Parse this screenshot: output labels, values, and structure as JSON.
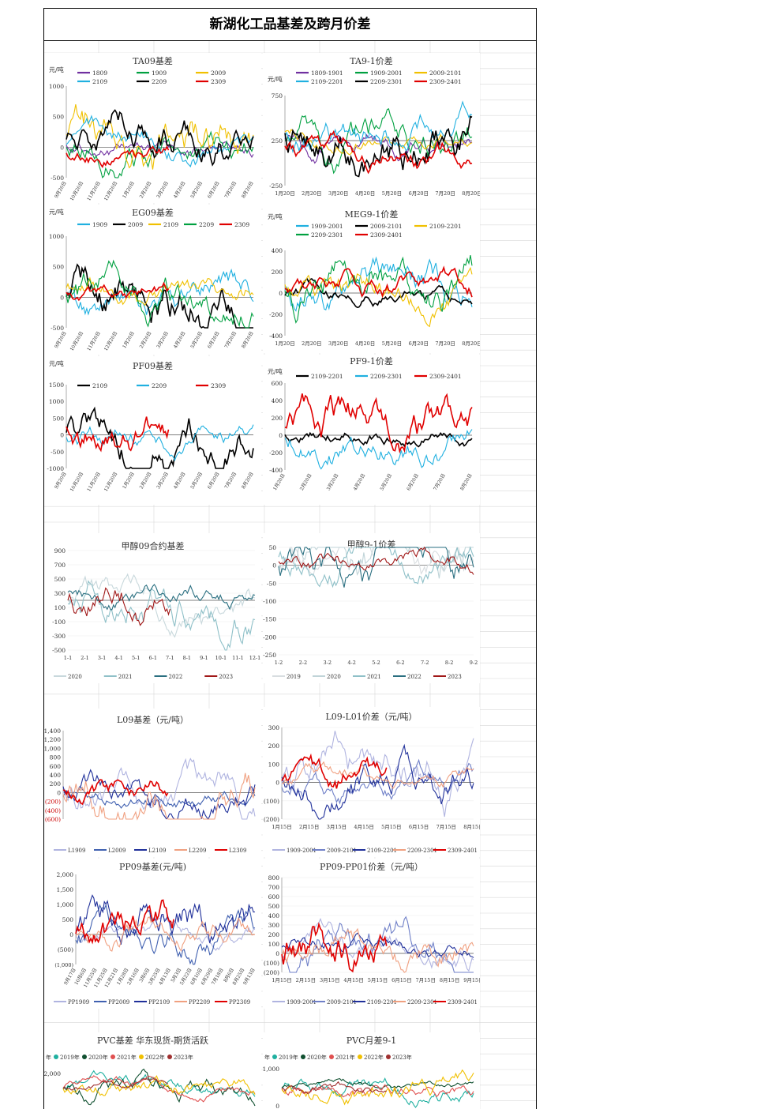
{
  "sheet_title": "新湖化工品基差及跨月价差",
  "chart_data": [
    {
      "id": "ta09",
      "type": "line",
      "title": "TA09基差",
      "ylabel": "元/吨",
      "ylim": [
        -500,
        1000
      ],
      "yticks": [
        "1000",
        "500",
        "0",
        "-500"
      ],
      "xticks": [
        "9月20日",
        "10月20日",
        "11月20日",
        "12月20日",
        "1月20日",
        "2月20日",
        "3月20日",
        "4月20日",
        "5月20日",
        "6月20日",
        "7月20日",
        "8月20日"
      ],
      "series": [
        {
          "name": "1809",
          "color": "#7030a0"
        },
        {
          "name": "1909",
          "color": "#00a040"
        },
        {
          "name": "2009",
          "color": "#f0c000"
        },
        {
          "name": "2109",
          "color": "#20b0e0"
        },
        {
          "name": "2209",
          "color": "#000000"
        },
        {
          "name": "2309",
          "color": "#e00000"
        }
      ]
    },
    {
      "id": "ta91",
      "type": "line",
      "title": "TA9-1价差",
      "ylabel": "元/吨",
      "ylim": [
        -250,
        750
      ],
      "yticks": [
        "750",
        "250",
        "-250"
      ],
      "xticks": [
        "1月20日",
        "2月20日",
        "3月20日",
        "4月20日",
        "5月20日",
        "6月20日",
        "7月20日",
        "8月20日"
      ],
      "series": [
        {
          "name": "1809-1901",
          "color": "#7030a0"
        },
        {
          "name": "1909-2001",
          "color": "#00a040"
        },
        {
          "name": "2009-2101",
          "color": "#f0c000"
        },
        {
          "name": "2109-2201",
          "color": "#20b0e0"
        },
        {
          "name": "2209-2301",
          "color": "#000000"
        },
        {
          "name": "2309-2401",
          "color": "#e00000"
        }
      ]
    },
    {
      "id": "eg09",
      "type": "line",
      "title": "EG09基差",
      "ylabel": "元/吨",
      "ylim": [
        -500,
        1000
      ],
      "yticks": [
        "1000",
        "500",
        "0",
        "-500"
      ],
      "xticks": [
        "9月20日",
        "10月20日",
        "11月20日",
        "12月20日",
        "1月20日",
        "2月20日",
        "3月20日",
        "4月20日",
        "5月20日",
        "6月20日",
        "7月20日",
        "8月20日"
      ],
      "series": [
        {
          "name": "1909",
          "color": "#20b0e0"
        },
        {
          "name": "2009",
          "color": "#000000"
        },
        {
          "name": "2109",
          "color": "#f0c000"
        },
        {
          "name": "2209",
          "color": "#00a040"
        },
        {
          "name": "2309",
          "color": "#e00000"
        }
      ]
    },
    {
      "id": "meg91",
      "type": "line",
      "title": "MEG9-1价差",
      "ylabel": "元/吨",
      "ylim": [
        -400,
        400
      ],
      "yticks": [
        "400",
        "200",
        "0",
        "-200",
        "-400"
      ],
      "xticks": [
        "1月20日",
        "2月20日",
        "3月20日",
        "4月20日",
        "5月20日",
        "6月20日",
        "7月20日",
        "8月20日"
      ],
      "series": [
        {
          "name": "1909-2001",
          "color": "#20b0e0"
        },
        {
          "name": "2009-2101",
          "color": "#000000"
        },
        {
          "name": "2109-2201",
          "color": "#f0c000"
        },
        {
          "name": "2209-2301",
          "color": "#00a040"
        },
        {
          "name": "2309-2401",
          "color": "#e00000"
        }
      ]
    },
    {
      "id": "pf09",
      "type": "line",
      "title": "PF09基差",
      "ylabel": "元/吨",
      "ylim": [
        -1000,
        1500
      ],
      "yticks": [
        "1500",
        "1000",
        "500",
        "0",
        "-500",
        "-1000"
      ],
      "xticks": [
        "9月20日",
        "10月20日",
        "11月20日",
        "12月20日",
        "1月20日",
        "2月20日",
        "3月20日",
        "4月20日",
        "5月20日",
        "6月20日",
        "7月20日",
        "8月20日"
      ],
      "series": [
        {
          "name": "2109",
          "color": "#000000"
        },
        {
          "name": "2209",
          "color": "#20b0e0"
        },
        {
          "name": "2309",
          "color": "#e00000"
        }
      ]
    },
    {
      "id": "pf91",
      "type": "line",
      "title": "PF9-1价差",
      "ylabel": "元/吨",
      "ylim": [
        -400,
        600
      ],
      "yticks": [
        "600",
        "400",
        "200",
        "0",
        "-200",
        "-400"
      ],
      "xticks": [
        "1月20日",
        "2月20日",
        "3月20日",
        "4月20日",
        "5月20日",
        "6月20日",
        "7月20日",
        "8月20日"
      ],
      "series": [
        {
          "name": "2109-2201",
          "color": "#000000"
        },
        {
          "name": "2209-2301",
          "color": "#20b0e0"
        },
        {
          "name": "2309-2401",
          "color": "#e00000"
        }
      ]
    },
    {
      "id": "ma09",
      "type": "line",
      "title": "甲醇09合约基差",
      "ylim": [
        -500,
        900
      ],
      "yticks": [
        "900",
        "700",
        "500",
        "300",
        "100",
        "-100",
        "-300",
        "-500"
      ],
      "xticks": [
        "1-1",
        "2-1",
        "3-1",
        "4-1",
        "5-1",
        "6-1",
        "7-1",
        "8-1",
        "9-1",
        "10-1",
        "11-1",
        "12-1"
      ],
      "series": [
        {
          "name": "2020",
          "color": "#c8d8dc"
        },
        {
          "name": "2021",
          "color": "#8fc0c8"
        },
        {
          "name": "2022",
          "color": "#2a6f80"
        },
        {
          "name": "2023",
          "color": "#a01818"
        }
      ]
    },
    {
      "id": "ma91",
      "type": "line",
      "title": "甲醇9-1价差",
      "ylim": [
        -250,
        50
      ],
      "yticks": [
        "50",
        "0",
        "-50",
        "-100",
        "-150",
        "-200",
        "-250"
      ],
      "xticks": [
        "1-2",
        "2-2",
        "3-2",
        "4-2",
        "5-2",
        "6-2",
        "7-2",
        "8-2",
        "9-2"
      ],
      "series": [
        {
          "name": "2019",
          "color": "#d8dde0"
        },
        {
          "name": "2020",
          "color": "#c0d4d8"
        },
        {
          "name": "2021",
          "color": "#8fc0c8"
        },
        {
          "name": "2022",
          "color": "#2a6f80"
        },
        {
          "name": "2023",
          "color": "#a01818"
        }
      ]
    },
    {
      "id": "l09",
      "type": "line",
      "title": "L09基差（元/吨）",
      "yticks": [
        "1,400",
        "1,200",
        "1,000",
        "800",
        "600",
        "400",
        "200",
        "0",
        "(200)",
        "(400)",
        "(600)"
      ],
      "series": [
        {
          "name": "L1909",
          "color": "#b0b4e0"
        },
        {
          "name": "L2009",
          "color": "#4060b0"
        },
        {
          "name": "L2109",
          "color": "#20309a"
        },
        {
          "name": "L2209",
          "color": "#f0a080"
        },
        {
          "name": "L2309",
          "color": "#e00000"
        }
      ]
    },
    {
      "id": "l91",
      "type": "line",
      "title": "L09-L01价差（元/吨）",
      "yticks": [
        "300",
        "200",
        "100",
        "0",
        "(100)",
        "(200)"
      ],
      "xticks": [
        "1月15日",
        "2月15日",
        "3月15日",
        "4月15日",
        "5月15日",
        "6月15日",
        "7月15日",
        "8月15日"
      ],
      "series": [
        {
          "name": "1909-2001",
          "color": "#b0b4e0"
        },
        {
          "name": "2009-2101",
          "color": "#7080c8"
        },
        {
          "name": "2109-2201",
          "color": "#20309a"
        },
        {
          "name": "2209-2301",
          "color": "#f0a080"
        },
        {
          "name": "2309-2401",
          "color": "#e00000"
        }
      ]
    },
    {
      "id": "pp09",
      "type": "line",
      "title": "PP09基差(元/吨)",
      "yticks": [
        "2,000",
        "1,500",
        "1,000",
        "500",
        "0",
        "(500)",
        "(1,000)"
      ],
      "xticks": [
        "9月17日",
        "10月6日",
        "11月25日",
        "11月25日",
        "12月21日",
        "1月28日",
        "2月16日",
        "3月6日",
        "3月25日",
        "4月13日",
        "5月3日",
        "5月22日",
        "6月10日",
        "6月29日",
        "7月18日",
        "8月6日",
        "8月25日",
        "9月13日"
      ],
      "series": [
        {
          "name": "PP1909",
          "color": "#b0b4e0"
        },
        {
          "name": "PP2009",
          "color": "#4060b0"
        },
        {
          "name": "PP2109",
          "color": "#20309a"
        },
        {
          "name": "PP2209",
          "color": "#f0a080"
        },
        {
          "name": "PP2309",
          "color": "#e00000"
        }
      ]
    },
    {
      "id": "pp91",
      "type": "line",
      "title": "PP09-PP01价差（元/吨）",
      "yticks": [
        "800",
        "700",
        "600",
        "500",
        "400",
        "300",
        "200",
        "100",
        "0",
        "(100)",
        "(200)"
      ],
      "xticks": [
        "1月15日",
        "2月15日",
        "3月15日",
        "4月15日",
        "5月15日",
        "6月15日",
        "7月15日",
        "8月15日",
        "9月15日"
      ],
      "series": [
        {
          "name": "1909-2001",
          "color": "#b0b4e0"
        },
        {
          "name": "2009-2101",
          "color": "#7080c8"
        },
        {
          "name": "2109-2201",
          "color": "#20309a"
        },
        {
          "name": "2209-2301",
          "color": "#f0a080"
        },
        {
          "name": "2309-2401",
          "color": "#e00000"
        }
      ]
    },
    {
      "id": "pvc09",
      "type": "line",
      "title": "PVC基差 华东现货-期货活跃",
      "legend_prefix": "年",
      "yticks": [
        "2,000"
      ],
      "series": [
        {
          "name": "2019年",
          "color": "#20b0a0"
        },
        {
          "name": "2020年",
          "color": "#105030"
        },
        {
          "name": "2021年",
          "color": "#e05050"
        },
        {
          "name": "2022年",
          "color": "#f0c000"
        },
        {
          "name": "2023年",
          "color": "#a03030"
        }
      ]
    },
    {
      "id": "pvc91",
      "type": "line",
      "title": "PVC月差9-1",
      "legend_prefix": "年",
      "yticks": [
        "1,000",
        "0"
      ],
      "series": [
        {
          "name": "2019年",
          "color": "#20b0a0"
        },
        {
          "name": "2020年",
          "color": "#105030"
        },
        {
          "name": "2021年",
          "color": "#e05050"
        },
        {
          "name": "2022年",
          "color": "#f0c000"
        },
        {
          "name": "2023年",
          "color": "#a03030"
        }
      ]
    }
  ]
}
